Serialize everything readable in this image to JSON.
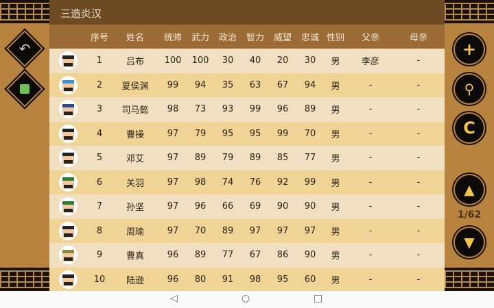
{
  "title": "三造炎汉",
  "headers": [
    "序号",
    "姓名",
    "统帅",
    "武力",
    "政治",
    "智力",
    "威望",
    "忠诚",
    "性别",
    "父亲",
    "母亲"
  ],
  "rows": [
    {
      "no": "1",
      "name": "吕布",
      "ts": "100",
      "wl": "100",
      "zz": "30",
      "zl": "40",
      "ww": "20",
      "zc": "30",
      "sex": "男",
      "father": "李彦",
      "mother": "-",
      "avatar_color": "#222222"
    },
    {
      "no": "2",
      "name": "夏侯渊",
      "ts": "99",
      "wl": "94",
      "zz": "35",
      "zl": "63",
      "ww": "67",
      "zc": "94",
      "sex": "男",
      "father": "-",
      "mother": "-",
      "avatar_color": "#3f8fd0"
    },
    {
      "no": "3",
      "name": "司马懿",
      "ts": "98",
      "wl": "73",
      "zz": "93",
      "zl": "99",
      "ww": "96",
      "zc": "89",
      "sex": "男",
      "father": "-",
      "mother": "-",
      "avatar_color": "#2a4a8a"
    },
    {
      "no": "4",
      "name": "曹操",
      "ts": "97",
      "wl": "79",
      "zz": "95",
      "zl": "95",
      "ww": "99",
      "zc": "70",
      "sex": "男",
      "father": "-",
      "mother": "-",
      "avatar_color": "#222222"
    },
    {
      "no": "5",
      "name": "邓艾",
      "ts": "97",
      "wl": "89",
      "zz": "79",
      "zl": "89",
      "ww": "85",
      "zc": "77",
      "sex": "男",
      "father": "-",
      "mother": "-",
      "avatar_color": "#222222"
    },
    {
      "no": "6",
      "name": "关羽",
      "ts": "97",
      "wl": "98",
      "zz": "74",
      "zl": "76",
      "ww": "92",
      "zc": "99",
      "sex": "男",
      "father": "-",
      "mother": "-",
      "avatar_color": "#2e7d32"
    },
    {
      "no": "7",
      "name": "孙坚",
      "ts": "97",
      "wl": "96",
      "zz": "66",
      "zl": "69",
      "ww": "90",
      "zc": "90",
      "sex": "男",
      "father": "-",
      "mother": "-",
      "avatar_color": "#2e7d32"
    },
    {
      "no": "8",
      "name": "周瑜",
      "ts": "97",
      "wl": "70",
      "zz": "89",
      "zl": "97",
      "ww": "97",
      "zc": "97",
      "sex": "男",
      "father": "-",
      "mother": "-",
      "avatar_color": "#222222"
    },
    {
      "no": "9",
      "name": "曹真",
      "ts": "96",
      "wl": "89",
      "zz": "77",
      "zl": "67",
      "ww": "86",
      "zc": "90",
      "sex": "男",
      "father": "-",
      "mother": "-",
      "avatar_color": "#8a8a3a"
    },
    {
      "no": "10",
      "name": "陆逊",
      "ts": "96",
      "wl": "80",
      "zz": "91",
      "zl": "98",
      "ww": "95",
      "zc": "60",
      "sex": "男",
      "father": "-",
      "mother": "-",
      "avatar_color": "#222222"
    }
  ],
  "page_indicator": "1/62",
  "icons": {
    "back": "undo-arrow-icon",
    "save": "save-icon",
    "add": "plus-icon",
    "search": "search-icon",
    "refresh": "refresh-icon",
    "up": "triangle-up-icon",
    "down": "triangle-down-icon"
  },
  "colors": {
    "title_bar": "#6c4a22",
    "header": "#9b6b35",
    "side": "#b8823f",
    "accent": "#f3c44a"
  }
}
